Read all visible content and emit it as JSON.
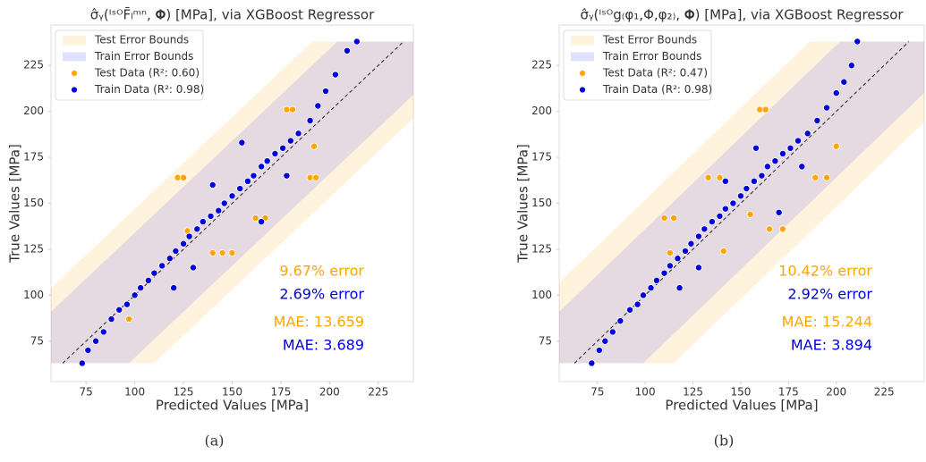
{
  "chart_data": [
    {
      "type": "scatter",
      "title": "σ̂ᵧ(ᴵˢᴼF̄ₗᵐⁿ, 𝚽) [MPa], via XGBoost Regressor",
      "x_label": "Predicted Values [MPa]",
      "y_label": "True Values [MPa]",
      "xlim": [
        57,
        243
      ],
      "ylim": [
        53,
        247
      ],
      "xticks": [
        75,
        100,
        125,
        150,
        175,
        200,
        225
      ],
      "yticks": [
        75,
        100,
        125,
        150,
        175,
        200,
        225
      ],
      "grid": false,
      "legend": "upper left",
      "bands": [
        {
          "name": "Test Error Bounds",
          "color": "#ffa500",
          "half_width": 47
        },
        {
          "name": "Train Error Bounds",
          "color": "#0000ff",
          "half_width": 34
        }
      ],
      "series": [
        {
          "name": "Test Data (R²: 0.60)",
          "color": "#ffa500",
          "x": [
            122,
            125,
            190,
            193,
            178,
            181,
            192,
            162,
            167,
            140,
            145,
            150,
            97,
            127
          ],
          "y": [
            164,
            164,
            164,
            164,
            201,
            201,
            181,
            142,
            142,
            123,
            123,
            123,
            87,
            135
          ]
        },
        {
          "name": "Train Data (R²: 0.98)",
          "color": "#0000dd",
          "x": [
            73,
            76,
            80,
            84,
            88,
            92,
            96,
            100,
            103,
            107,
            110,
            114,
            118,
            121,
            125,
            128,
            132,
            135,
            139,
            143,
            146,
            150,
            154,
            158,
            161,
            165,
            168,
            172,
            176,
            180,
            184,
            190,
            194,
            198,
            203,
            209,
            214,
            155,
            130,
            165,
            140,
            178,
            120
          ],
          "y": [
            63,
            70,
            75,
            80,
            87,
            92,
            95,
            100,
            104,
            108,
            112,
            116,
            120,
            124,
            128,
            132,
            136,
            140,
            143,
            146,
            150,
            154,
            158,
            162,
            165,
            170,
            173,
            177,
            180,
            184,
            188,
            195,
            203,
            211,
            220,
            233,
            238,
            183,
            115,
            140,
            160,
            165,
            104
          ]
        }
      ],
      "annotations": [
        {
          "text": "9.67% error",
          "color": "#ffa500"
        },
        {
          "text": "2.69% error",
          "color": "#0000dd"
        },
        {
          "text": "MAE: 13.659",
          "color": "#ffa500"
        },
        {
          "text": "MAE: 3.689",
          "color": "#0000dd"
        }
      ],
      "caption": "(a)"
    },
    {
      "type": "scatter",
      "title": "σ̂ᵧ(ᴵˢᴼg₍φ₁,Φ,φ₂₎, 𝚽) [MPa], via XGBoost Regressor",
      "x_label": "Predicted Values [MPa]",
      "y_label": "True Values [MPa]",
      "xlim": [
        55,
        246
      ],
      "ylim": [
        53,
        247
      ],
      "xticks": [
        75,
        100,
        125,
        150,
        175,
        200,
        225
      ],
      "yticks": [
        75,
        100,
        125,
        150,
        175,
        200,
        225
      ],
      "grid": false,
      "legend": "upper left",
      "bands": [
        {
          "name": "Test Error Bounds",
          "color": "#ffa500",
          "half_width": 52
        },
        {
          "name": "Train Error Bounds",
          "color": "#0000ff",
          "half_width": 36
        }
      ],
      "series": [
        {
          "name": "Test Data (R²: 0.47)",
          "color": "#ffa500",
          "x": [
            160,
            163,
            195,
            189,
            133,
            139,
            110,
            115,
            165,
            172,
            141,
            113,
            200,
            155
          ],
          "y": [
            201,
            201,
            164,
            164,
            164,
            164,
            142,
            142,
            136,
            136,
            124,
            123,
            181,
            144
          ]
        },
        {
          "name": "Train Data (R²: 0.98)",
          "color": "#0000dd",
          "x": [
            72,
            76,
            79,
            83,
            87,
            92,
            96,
            99,
            103,
            106,
            110,
            113,
            117,
            121,
            124,
            128,
            131,
            135,
            139,
            142,
            146,
            150,
            153,
            157,
            161,
            164,
            168,
            172,
            176,
            180,
            185,
            190,
            195,
            200,
            204,
            208,
            211,
            158,
            128,
            170,
            142,
            182,
            118
          ],
          "y": [
            63,
            70,
            75,
            80,
            86,
            92,
            95,
            100,
            104,
            108,
            112,
            116,
            120,
            124,
            128,
            132,
            136,
            140,
            143,
            147,
            150,
            154,
            158,
            162,
            165,
            170,
            173,
            177,
            180,
            184,
            188,
            195,
            202,
            210,
            216,
            225,
            238,
            180,
            115,
            145,
            162,
            170,
            104
          ]
        }
      ],
      "annotations": [
        {
          "text": "10.42% error",
          "color": "#ffa500"
        },
        {
          "text": "2.92% error",
          "color": "#0000dd"
        },
        {
          "text": "MAE: 15.244",
          "color": "#ffa500"
        },
        {
          "text": "MAE: 3.894",
          "color": "#0000dd"
        }
      ],
      "caption": "(b)"
    }
  ]
}
